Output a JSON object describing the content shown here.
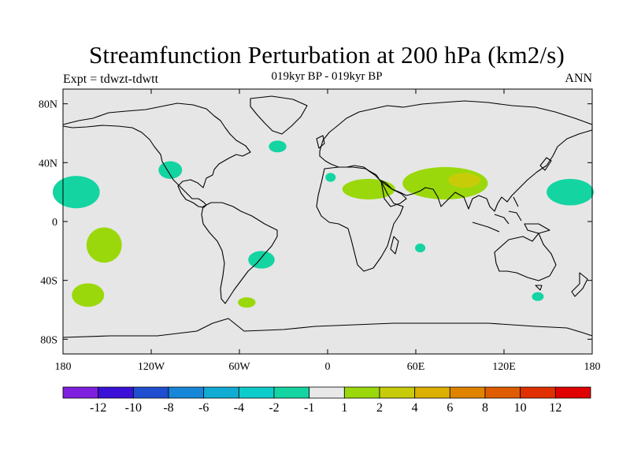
{
  "title": "Streamfunction Perturbation at 200 hPa (km2/s)",
  "subtitle": "019kyr BP - 019kyr BP",
  "left_label": "Expt = tdwzt-tdwtt",
  "right_label": "ANN",
  "chart_data": {
    "type": "heatmap",
    "projection": "cylindrical-equidistant",
    "title": "Streamfunction Perturbation at 200 hPa (km2/s)",
    "xlim": [
      -180,
      180
    ],
    "ylim": [
      -90,
      90
    ],
    "x_ticks": [
      {
        "value": -180,
        "label": "180"
      },
      {
        "value": -120,
        "label": "120W"
      },
      {
        "value": -60,
        "label": "60W"
      },
      {
        "value": 0,
        "label": "0"
      },
      {
        "value": 60,
        "label": "60E"
      },
      {
        "value": 120,
        "label": "120E"
      },
      {
        "value": 180,
        "label": "180"
      }
    ],
    "y_ticks": [
      {
        "value": 80,
        "label": "80N"
      },
      {
        "value": 40,
        "label": "40N"
      },
      {
        "value": 0,
        "label": "0"
      },
      {
        "value": -40,
        "label": "40S"
      },
      {
        "value": -80,
        "label": "80S"
      }
    ],
    "colorbar": {
      "colors": [
        "#7f1fe0",
        "#3a10d8",
        "#1f4fd0",
        "#1687d8",
        "#10acd4",
        "#0fcccc",
        "#14d4a2",
        "#e8e8e8",
        "#9ad80c",
        "#c8cc08",
        "#dcb000",
        "#e08400",
        "#e05c00",
        "#e03000",
        "#e00000"
      ],
      "labels": [
        "-12",
        "-10",
        "-8",
        "-6",
        "-4",
        "-2",
        "-1",
        "1",
        "2",
        "4",
        "6",
        "8",
        "10",
        "12"
      ]
    },
    "anomalies": [
      {
        "name": "north-pacific-west-negative",
        "lon": -171,
        "lat": 20,
        "rx": 16,
        "ry": 11,
        "level": -1,
        "color": "#14d4a2"
      },
      {
        "name": "north-pacific-east-negative",
        "lon": -107,
        "lat": 35,
        "rx": 8,
        "ry": 6,
        "level": -1,
        "color": "#14d4a2"
      },
      {
        "name": "north-atlantic-negative",
        "lon": -34,
        "lat": 51,
        "rx": 6,
        "ry": 4,
        "level": -1,
        "color": "#14d4a2"
      },
      {
        "name": "mediterranean-negative",
        "lon": 2,
        "lat": 30,
        "rx": 3.5,
        "ry": 3,
        "level": -1,
        "color": "#14d4a2"
      },
      {
        "name": "south-america-negative",
        "lon": -45,
        "lat": -26,
        "rx": 9,
        "ry": 6,
        "level": -1,
        "color": "#14d4a2"
      },
      {
        "name": "indian-ocean-negative",
        "lon": 63,
        "lat": -18,
        "rx": 3.5,
        "ry": 3,
        "level": -1,
        "color": "#14d4a2"
      },
      {
        "name": "south-of-australia-negative",
        "lon": 143,
        "lat": -51,
        "rx": 4,
        "ry": 3,
        "level": -1,
        "color": "#14d4a2"
      },
      {
        "name": "west-pacific-negative",
        "lon": 165,
        "lat": 20,
        "rx": 16,
        "ry": 9,
        "level": -1,
        "color": "#14d4a2"
      },
      {
        "name": "south-pacific-positive",
        "lon": -152,
        "lat": -16,
        "rx": 12,
        "ry": 12,
        "level": 1,
        "color": "#9ad80c"
      },
      {
        "name": "south-pacific-southern-positive",
        "lon": -163,
        "lat": -50,
        "rx": 11,
        "ry": 8,
        "level": 1,
        "color": "#9ad80c"
      },
      {
        "name": "south-atlantic-positive",
        "lon": -55,
        "lat": -55,
        "rx": 6,
        "ry": 3.5,
        "level": 1,
        "color": "#9ad80c"
      },
      {
        "name": "africa-arabia-positive",
        "lon": 28,
        "lat": 22,
        "rx": 18,
        "ry": 7,
        "level": 1,
        "color": "#9ad80c"
      },
      {
        "name": "asia-positive",
        "lon": 80,
        "lat": 26,
        "rx": 29,
        "ry": 11,
        "level": 1,
        "color": "#9ad80c"
      },
      {
        "name": "tibet-core-positive",
        "lon": 93,
        "lat": 28,
        "rx": 11,
        "ry": 5,
        "level": 2,
        "color": "#c8cc08"
      }
    ]
  }
}
